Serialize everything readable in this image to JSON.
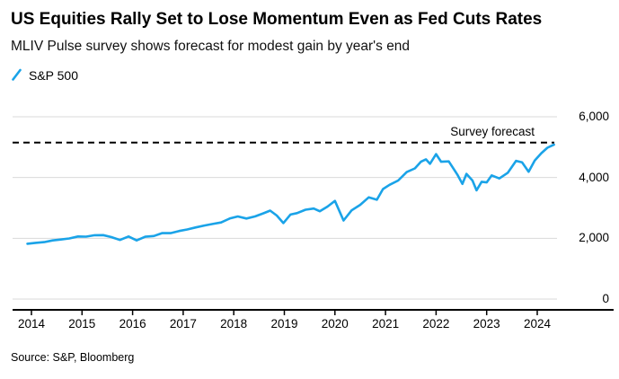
{
  "header": {
    "title": "US Equities Rally Set to Lose Momentum Even as Fed Cuts Rates",
    "subtitle": "MLIV Pulse survey shows forecast for modest gain by year's end"
  },
  "legend": {
    "label": "S&P 500",
    "color": "#1AA3E8"
  },
  "forecast": {
    "label": "Survey forecast",
    "value": 5150
  },
  "source": "Source: S&P, Bloomberg",
  "colors": {
    "series_line": "#1AA3E8",
    "gridline": "#d9d9d9",
    "axis": "#000000",
    "forecast_line": "#000000",
    "text": "#000000"
  },
  "chart_data": {
    "type": "line",
    "title": "US Equities Rally Set to Lose Momentum Even as Fed Cuts Rates",
    "subtitle": "MLIV Pulse survey shows forecast for modest gain by year's end",
    "xlabel": "",
    "ylabel": "",
    "x_range": [
      2013.9,
      2024.4
    ],
    "y_range": [
      0,
      6000
    ],
    "grid": "horizontal",
    "legend_position": "top-left",
    "y_axis_side": "right",
    "x_ticks": [
      {
        "value": 2014,
        "label": "2014"
      },
      {
        "value": 2015,
        "label": "2015"
      },
      {
        "value": 2016,
        "label": "2016"
      },
      {
        "value": 2017,
        "label": "2017"
      },
      {
        "value": 2018,
        "label": "2018"
      },
      {
        "value": 2019,
        "label": "2019"
      },
      {
        "value": 2020,
        "label": "2020"
      },
      {
        "value": 2021,
        "label": "2021"
      },
      {
        "value": 2022,
        "label": "2022"
      },
      {
        "value": 2023,
        "label": "2023"
      },
      {
        "value": 2024,
        "label": "2024"
      }
    ],
    "y_ticks": [
      {
        "value": 0,
        "label": "0"
      },
      {
        "value": 2000,
        "label": "2,000"
      },
      {
        "value": 4000,
        "label": "4,000"
      },
      {
        "value": 6000,
        "label": "6,000"
      }
    ],
    "annotations": [
      {
        "type": "hline",
        "label": "Survey forecast",
        "value": 5150,
        "style": "dashed",
        "color": "#000000"
      }
    ],
    "series": [
      {
        "name": "S&P 500",
        "color": "#1AA3E8",
        "points": [
          [
            2013.92,
            1820
          ],
          [
            2014.08,
            1850
          ],
          [
            2014.25,
            1875
          ],
          [
            2014.42,
            1930
          ],
          [
            2014.58,
            1960
          ],
          [
            2014.75,
            1995
          ],
          [
            2014.92,
            2060
          ],
          [
            2015.08,
            2055
          ],
          [
            2015.25,
            2100
          ],
          [
            2015.42,
            2105
          ],
          [
            2015.58,
            2040
          ],
          [
            2015.75,
            1945
          ],
          [
            2015.92,
            2060
          ],
          [
            2016.08,
            1930
          ],
          [
            2016.25,
            2050
          ],
          [
            2016.42,
            2075
          ],
          [
            2016.58,
            2170
          ],
          [
            2016.75,
            2170
          ],
          [
            2016.92,
            2240
          ],
          [
            2017.08,
            2290
          ],
          [
            2017.25,
            2360
          ],
          [
            2017.42,
            2420
          ],
          [
            2017.58,
            2470
          ],
          [
            2017.75,
            2520
          ],
          [
            2017.92,
            2650
          ],
          [
            2018.08,
            2720
          ],
          [
            2018.25,
            2650
          ],
          [
            2018.42,
            2720
          ],
          [
            2018.58,
            2820
          ],
          [
            2018.72,
            2910
          ],
          [
            2018.85,
            2750
          ],
          [
            2018.98,
            2500
          ],
          [
            2019.12,
            2780
          ],
          [
            2019.25,
            2830
          ],
          [
            2019.42,
            2940
          ],
          [
            2019.58,
            2980
          ],
          [
            2019.7,
            2890
          ],
          [
            2019.85,
            3040
          ],
          [
            2020.0,
            3230
          ],
          [
            2020.17,
            2585
          ],
          [
            2020.33,
            2920
          ],
          [
            2020.5,
            3100
          ],
          [
            2020.67,
            3350
          ],
          [
            2020.83,
            3270
          ],
          [
            2020.95,
            3620
          ],
          [
            2021.08,
            3760
          ],
          [
            2021.25,
            3900
          ],
          [
            2021.42,
            4180
          ],
          [
            2021.58,
            4300
          ],
          [
            2021.7,
            4520
          ],
          [
            2021.8,
            4600
          ],
          [
            2021.88,
            4450
          ],
          [
            2022.0,
            4770
          ],
          [
            2022.1,
            4520
          ],
          [
            2022.25,
            4530
          ],
          [
            2022.42,
            4100
          ],
          [
            2022.52,
            3790
          ],
          [
            2022.6,
            4120
          ],
          [
            2022.72,
            3900
          ],
          [
            2022.8,
            3580
          ],
          [
            2022.9,
            3860
          ],
          [
            2023.0,
            3840
          ],
          [
            2023.1,
            4070
          ],
          [
            2023.25,
            3970
          ],
          [
            2023.42,
            4160
          ],
          [
            2023.58,
            4550
          ],
          [
            2023.7,
            4500
          ],
          [
            2023.83,
            4190
          ],
          [
            2023.95,
            4560
          ],
          [
            2024.08,
            4800
          ],
          [
            2024.2,
            4980
          ],
          [
            2024.33,
            5080
          ]
        ]
      }
    ]
  }
}
